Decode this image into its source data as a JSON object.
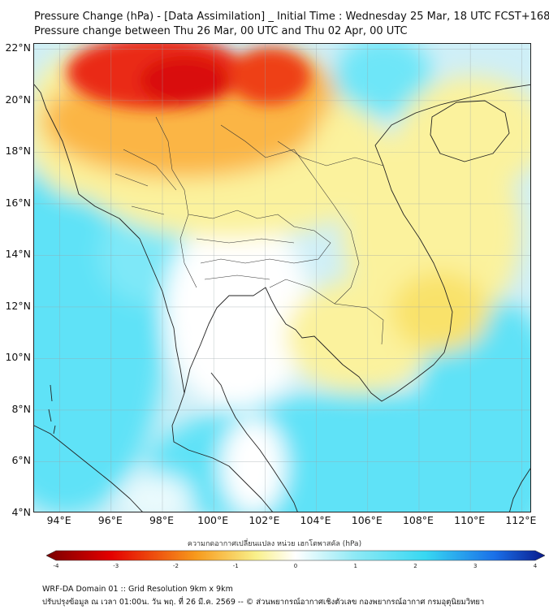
{
  "title_line1": "Pressure Change (hPa) - [Data Assimilation] _ Initial Time : Wednesday 25 Mar, 18 UTC FCST+168",
  "title_line2": "Pressure change between Thu 26 Mar, 00 UTC and Thu 02 Apr, 00 UTC",
  "lat_labels": [
    "22°N",
    "20°N",
    "18°N",
    "16°N",
    "14°N",
    "12°N",
    "10°N",
    "8°N",
    "6°N",
    "4°N"
  ],
  "lat_values": [
    22,
    20,
    18,
    16,
    14,
    12,
    10,
    8,
    6,
    4
  ],
  "lon_labels": [
    "94°E",
    "96°E",
    "98°E",
    "100°E",
    "102°E",
    "104°E",
    "106°E",
    "108°E",
    "110°E",
    "112°E"
  ],
  "lon_values": [
    94,
    96,
    98,
    100,
    102,
    104,
    106,
    108,
    110,
    112
  ],
  "extent": {
    "lon_min": 93.0,
    "lon_max": 112.4,
    "lat_min": 4.0,
    "lat_max": 22.2
  },
  "colorbar": {
    "title": "ความกดอากาศเปลี่ยนแปลง หน่วย เฮกโตพาสคัล (hPa)",
    "min": -4,
    "max": 4,
    "tick_labels": [
      "-4",
      "-3",
      "-2",
      "-1",
      "0",
      "1",
      "2",
      "3",
      "4"
    ],
    "tick_values": [
      -4,
      -3,
      -2,
      -1,
      0,
      1,
      2,
      3,
      4
    ],
    "colors": {
      "neg_dark": "#7a0000",
      "neg_red": "#e40000",
      "neg_orange": "#f79a1c",
      "neg_yellow": "#f9f08a",
      "zero": "#ffffff",
      "pos_cyan": "#38d8f2",
      "pos_blue": "#1a6fe8",
      "pos_dark": "#0a1b8c"
    }
  },
  "field_colors": {
    "background": "#cfeff7",
    "cyan": "#5fe2f7",
    "yellow": "#fbf29d",
    "orange": "#fbb545",
    "red": "#e8200f",
    "white": "#ffffff",
    "coast": "#222222"
  },
  "footer_line1": "WRF-DA Domain 01 :: Grid Resolution 9km x 9km",
  "footer_line2": "ปรับปรุงข้อมูล ณ เวลา 01:00น. วัน พฤ. ที่ 26 มี.ค. 2569 -- © ส่วนพยากรณ์อากาศเชิงตัวเลข กองพยากรณ์อากาศ กรมอุตุนิยมวิทยา"
}
